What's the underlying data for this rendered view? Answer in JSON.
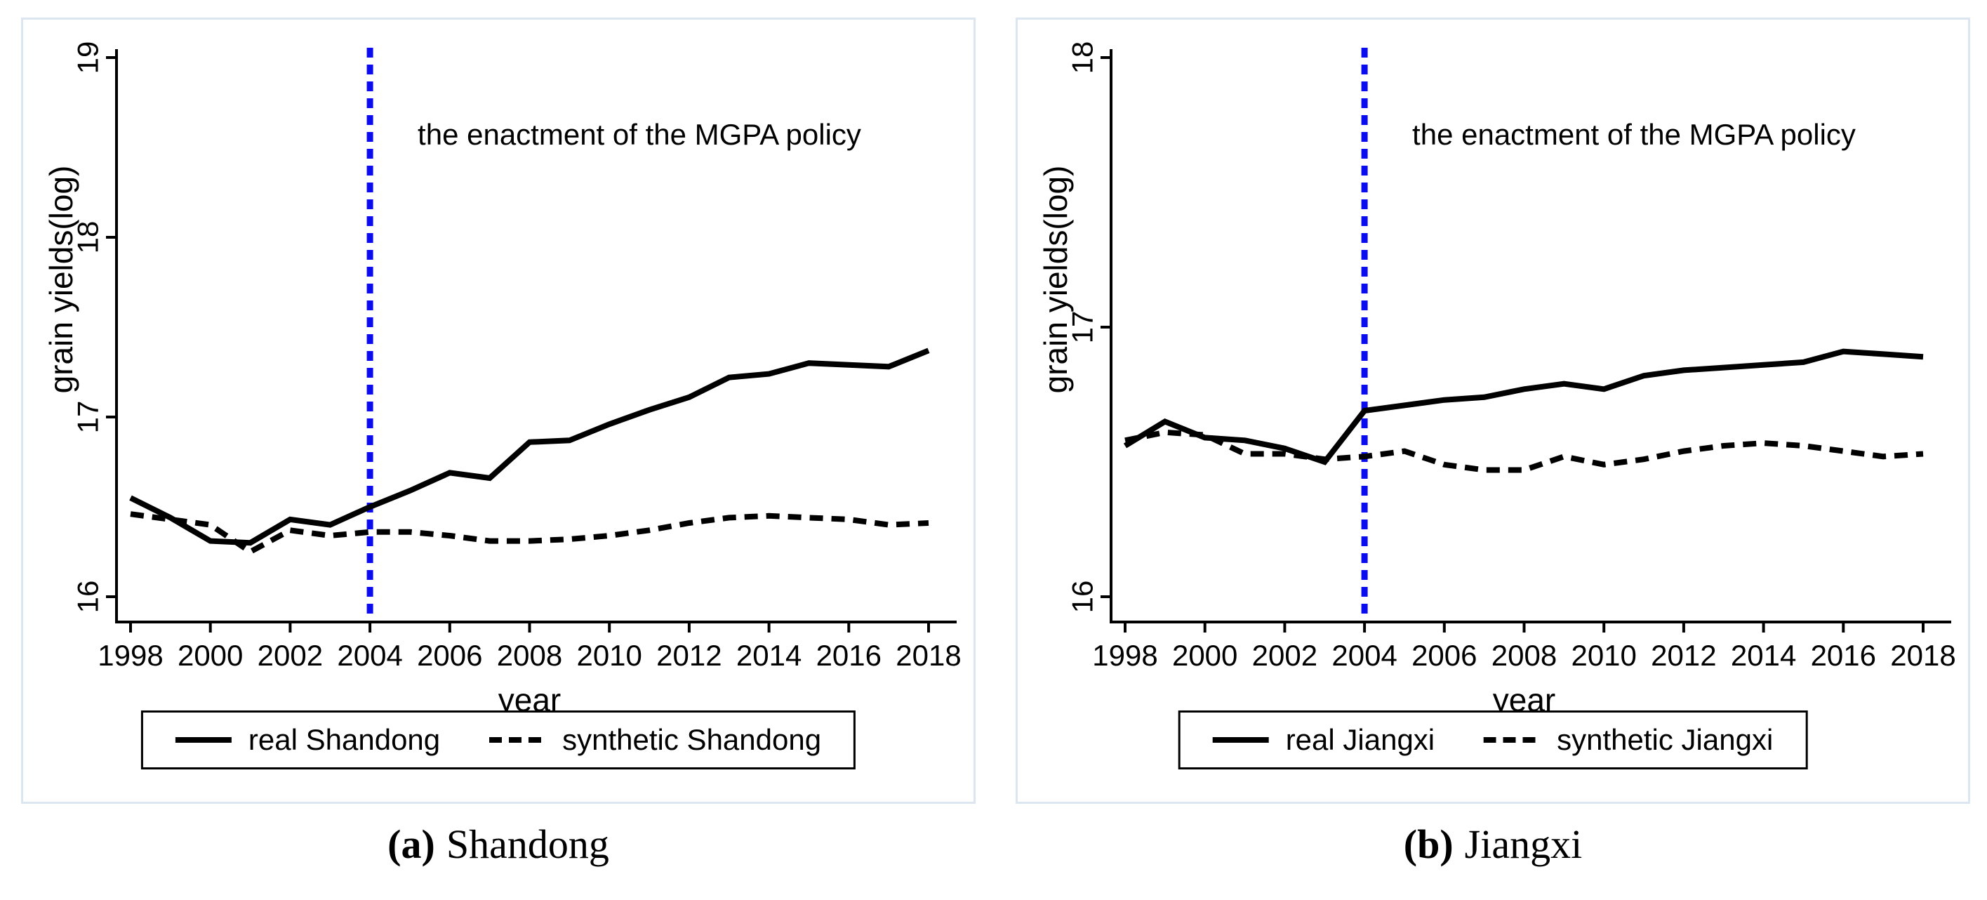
{
  "figure": {
    "background": "#ffffff",
    "panel_border_color": "#dce6f0",
    "line_color": "#000000",
    "policy_line_color": "#0b0bf0"
  },
  "chart_data": [
    {
      "type": "line",
      "caption_label": "(a)",
      "caption_text": "Shandong",
      "xlabel": "year",
      "ylabel": "grain yields(log)",
      "annotation": "the enactment of the MGPA policy",
      "policy_year": 2004,
      "xlim": [
        1998,
        2018
      ],
      "ylim": [
        16,
        19
      ],
      "yticks": [
        16,
        17,
        18,
        19
      ],
      "xticks": [
        1998,
        2000,
        2002,
        2004,
        2006,
        2008,
        2010,
        2012,
        2014,
        2016,
        2018
      ],
      "x": [
        1998,
        1999,
        2000,
        2001,
        2002,
        2003,
        2004,
        2005,
        2006,
        2007,
        2008,
        2009,
        2010,
        2011,
        2012,
        2013,
        2014,
        2015,
        2016,
        2017,
        2018
      ],
      "grid": false,
      "legend_position": "bottom",
      "series": [
        {
          "name": "real Shandong",
          "style": "solid",
          "values": [
            16.55,
            16.44,
            16.31,
            16.3,
            16.43,
            16.4,
            16.5,
            16.59,
            16.69,
            16.66,
            16.86,
            16.87,
            16.96,
            17.04,
            17.11,
            17.22,
            17.24,
            17.3,
            17.29,
            17.28,
            17.37
          ]
        },
        {
          "name": "synthetic Shandong",
          "style": "dashed",
          "values": [
            16.46,
            16.43,
            16.4,
            16.25,
            16.37,
            16.34,
            16.36,
            16.36,
            16.34,
            16.31,
            16.31,
            16.32,
            16.34,
            16.37,
            16.41,
            16.44,
            16.45,
            16.44,
            16.43,
            16.4,
            16.41
          ]
        }
      ]
    },
    {
      "type": "line",
      "caption_label": "(b)",
      "caption_text": "Jiangxi",
      "xlabel": "year",
      "ylabel": "grain yields(log)",
      "annotation": "the enactment of the MGPA policy",
      "policy_year": 2004,
      "xlim": [
        1998,
        2018
      ],
      "ylim": [
        16,
        18
      ],
      "yticks": [
        16,
        17,
        18
      ],
      "xticks": [
        1998,
        2000,
        2002,
        2004,
        2006,
        2008,
        2010,
        2012,
        2014,
        2016,
        2018
      ],
      "x": [
        1998,
        1999,
        2000,
        2001,
        2002,
        2003,
        2004,
        2005,
        2006,
        2007,
        2008,
        2009,
        2010,
        2011,
        2012,
        2013,
        2014,
        2015,
        2016,
        2017,
        2018
      ],
      "grid": false,
      "legend_position": "bottom",
      "series": [
        {
          "name": "real Jiangxi",
          "style": "solid",
          "values": [
            16.56,
            16.65,
            16.59,
            16.58,
            16.55,
            16.5,
            16.69,
            16.71,
            16.73,
            16.74,
            16.77,
            16.79,
            16.77,
            16.82,
            16.84,
            16.85,
            16.86,
            16.87,
            16.91,
            16.9,
            16.89
          ]
        },
        {
          "name": "synthetic Jiangxi",
          "style": "dashed",
          "values": [
            16.58,
            16.61,
            16.6,
            16.53,
            16.53,
            16.51,
            16.52,
            16.54,
            16.49,
            16.47,
            16.47,
            16.52,
            16.49,
            16.51,
            16.54,
            16.56,
            16.57,
            16.56,
            16.54,
            16.52,
            16.53
          ]
        }
      ]
    }
  ]
}
